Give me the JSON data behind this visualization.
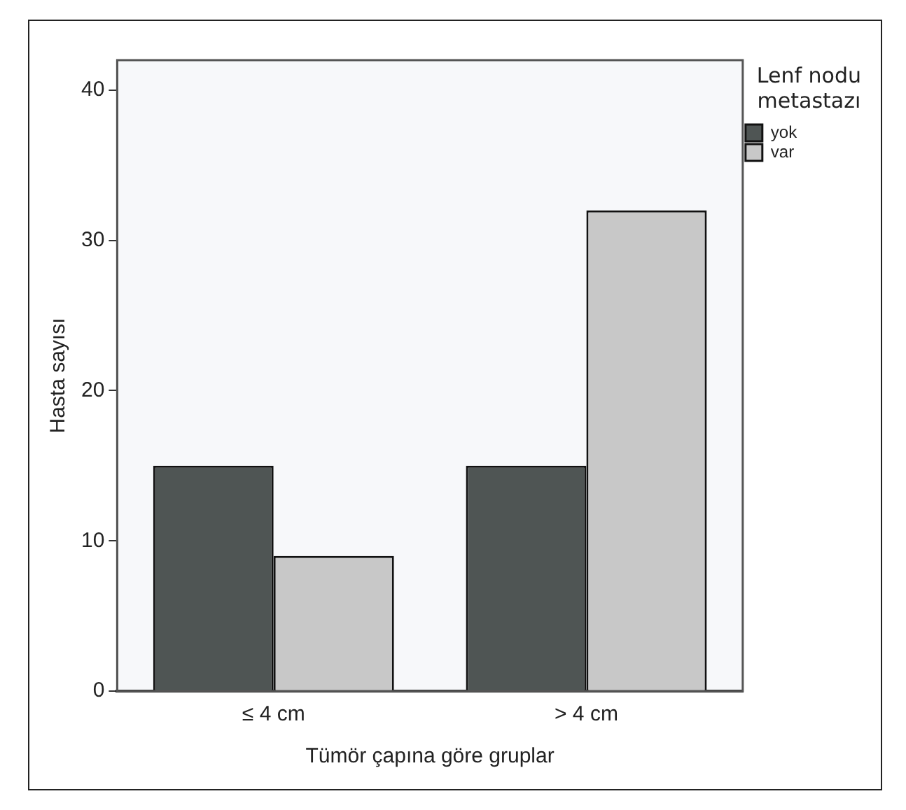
{
  "chart_data": {
    "type": "bar",
    "xlabel": "Tümör çapına göre gruplar",
    "ylabel": "Hasta sayısı",
    "legend_title": "Lenf nodu metastazı",
    "categories": [
      "≤ 4 cm",
      "> 4 cm"
    ],
    "series": [
      {
        "name": "yok",
        "color": "#4f5554",
        "values": [
          15,
          15
        ]
      },
      {
        "name": "var",
        "color": "#c8c8c8",
        "values": [
          9,
          32
        ]
      }
    ],
    "ylim": [
      0,
      42
    ],
    "yticks": [
      0,
      10,
      20,
      30,
      40
    ],
    "grid": false,
    "legend": "right"
  }
}
